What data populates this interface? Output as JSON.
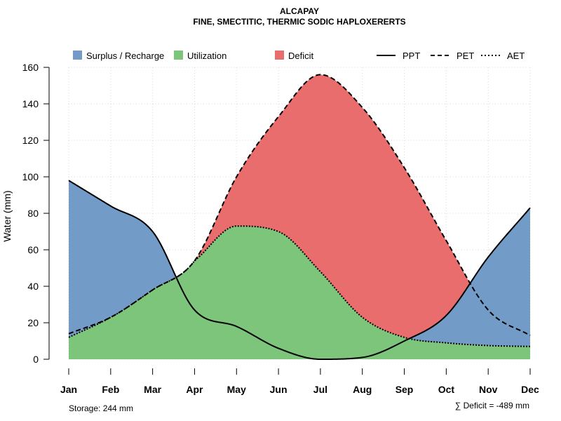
{
  "chart_data": {
    "type": "area",
    "title": "ALCAPAY",
    "subtitle": "FINE, SMECTITIC, THERMIC SODIC HAPLOXERERTS",
    "ylabel": "Water (mm)",
    "xlabel": "",
    "ylim": [
      0,
      160
    ],
    "yticks": [
      0,
      20,
      40,
      60,
      80,
      100,
      120,
      140,
      160
    ],
    "categories": [
      "Jan",
      "Feb",
      "Mar",
      "Apr",
      "May",
      "Jun",
      "Jul",
      "Aug",
      "Sep",
      "Oct",
      "Nov",
      "Dec"
    ],
    "grid": true,
    "series": [
      {
        "name": "PPT",
        "line_style": "solid",
        "values": [
          98,
          84,
          70,
          27,
          18,
          6,
          0,
          1,
          10,
          24,
          56,
          83
        ]
      },
      {
        "name": "PET",
        "line_style": "dashed",
        "values": [
          14,
          23,
          38,
          54,
          100,
          133,
          156,
          138,
          105,
          65,
          27,
          13
        ]
      },
      {
        "name": "AET",
        "line_style": "dotted",
        "values": [
          12,
          23,
          38,
          54,
          73,
          70,
          48,
          23,
          12,
          9,
          7.5,
          7
        ]
      }
    ],
    "fill_legend": [
      {
        "name": "Surplus / Recharge",
        "color": "#729bc8"
      },
      {
        "name": "Utilization",
        "color": "#7dc57a"
      },
      {
        "name": "Deficit",
        "color": "#ea6d6e"
      }
    ],
    "line_legend": [
      {
        "name": "PPT",
        "style": "solid"
      },
      {
        "name": "PET",
        "style": "dashed"
      },
      {
        "name": "AET",
        "style": "dotted"
      }
    ],
    "legend_position": "top",
    "annotations": {
      "storage": "Storage: 244 mm",
      "deficit": "∑ Deficit = -489 mm"
    }
  }
}
